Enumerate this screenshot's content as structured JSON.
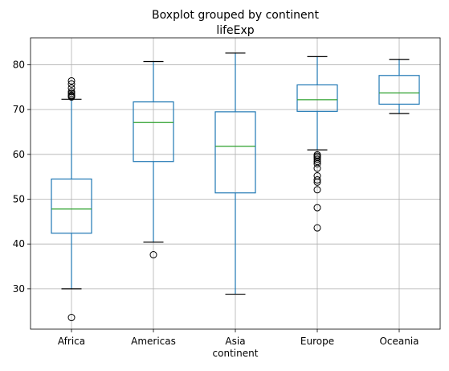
{
  "chart_data": {
    "type": "boxplot",
    "title": "Boxplot grouped by continent",
    "subtitle": "lifeExp",
    "xlabel": "continent",
    "ylabel": "",
    "ylim": [
      21,
      86
    ],
    "yticks": [
      30,
      40,
      50,
      60,
      70,
      80
    ],
    "grid": true,
    "categories": [
      "Africa",
      "Americas",
      "Asia",
      "Europe",
      "Oceania"
    ],
    "boxes": [
      {
        "category": "Africa",
        "whisker_low": 30.0,
        "q1": 42.4,
        "median": 47.8,
        "q3": 54.5,
        "whisker_high": 72.3,
        "outliers": [
          23.6,
          72.8,
          73.0,
          73.2,
          73.6,
          74.0,
          74.8,
          75.7,
          76.4
        ]
      },
      {
        "category": "Americas",
        "whisker_low": 40.4,
        "q1": 58.4,
        "median": 67.1,
        "q3": 71.7,
        "whisker_high": 80.7,
        "outliers": [
          37.6
        ]
      },
      {
        "category": "Asia",
        "whisker_low": 28.8,
        "q1": 51.4,
        "median": 61.8,
        "q3": 69.5,
        "whisker_high": 82.6,
        "outliers": []
      },
      {
        "category": "Europe",
        "whisker_low": 61.0,
        "q1": 69.6,
        "median": 72.2,
        "q3": 75.5,
        "whisker_high": 81.8,
        "outliers": [
          43.6,
          48.1,
          52.1,
          53.8,
          54.3,
          55.2,
          56.9,
          57.9,
          58.4,
          58.9,
          59.3,
          59.6,
          59.9
        ]
      },
      {
        "category": "Oceania",
        "whisker_low": 69.1,
        "q1": 71.2,
        "median": 73.7,
        "q3": 77.6,
        "whisker_high": 81.2,
        "outliers": []
      }
    ],
    "colors": {
      "box": "#1f77b4",
      "median": "#2ca02c",
      "grid": "#b0b0b0",
      "outlier": "#000000"
    }
  }
}
